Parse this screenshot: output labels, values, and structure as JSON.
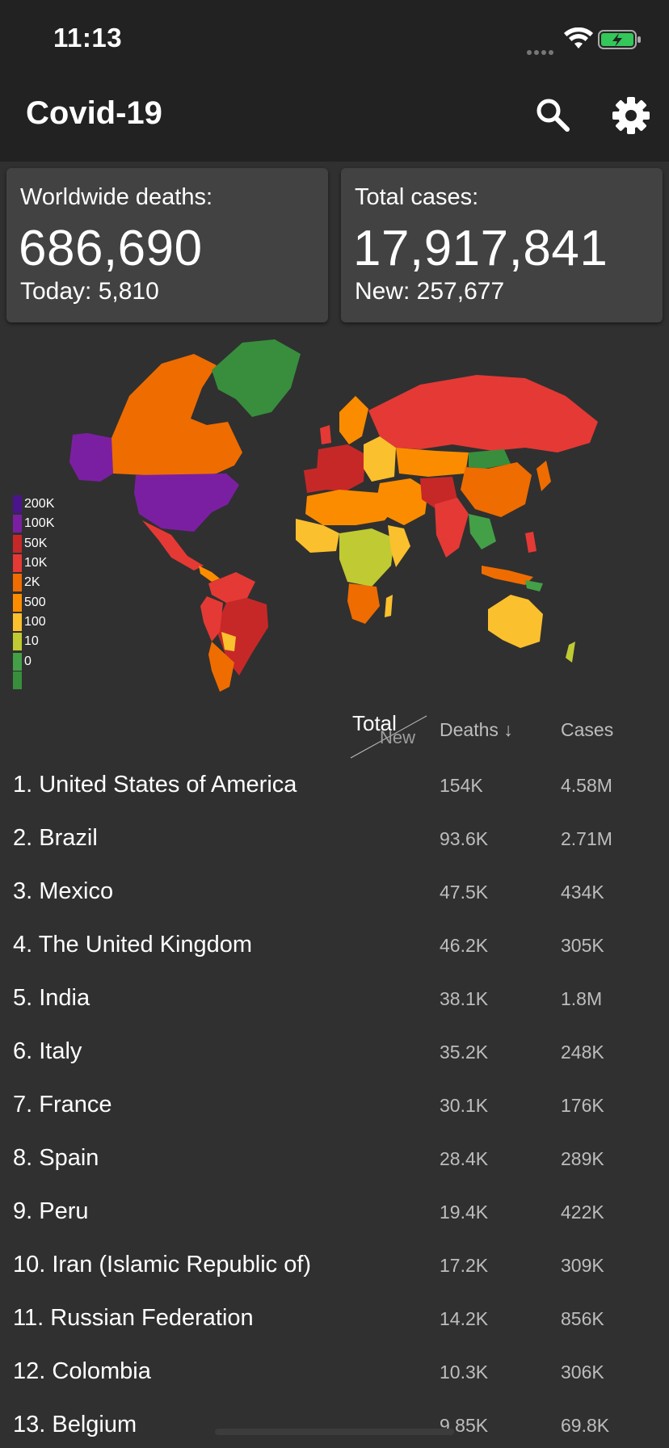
{
  "status_bar": {
    "time": "11:13"
  },
  "app_bar": {
    "title": "Covid-19"
  },
  "cards": {
    "deaths": {
      "label": "Worldwide deaths:",
      "value": "686,690",
      "sub": "Today: 5,810"
    },
    "cases": {
      "label": "Total cases:",
      "value": "17,917,841",
      "sub": "New: 257,677"
    }
  },
  "legend": [
    {
      "label": "200K",
      "color": "#4a148c"
    },
    {
      "label": "100K",
      "color": "#7b1fa2"
    },
    {
      "label": "50K",
      "color": "#c62828"
    },
    {
      "label": "10K",
      "color": "#e53935"
    },
    {
      "label": "2K",
      "color": "#ef6c00"
    },
    {
      "label": "500",
      "color": "#fb8c00"
    },
    {
      "label": "100",
      "color": "#fbc02d"
    },
    {
      "label": "10",
      "color": "#c0ca33"
    },
    {
      "label": "0",
      "color": "#43a047"
    }
  ],
  "table": {
    "header": {
      "total": "Total",
      "new": "New",
      "deaths": "Deaths ↓",
      "cases": "Cases"
    },
    "rows": [
      {
        "name": "1. United States of America",
        "deaths": "154K",
        "cases": "4.58M"
      },
      {
        "name": "2. Brazil",
        "deaths": "93.6K",
        "cases": "2.71M"
      },
      {
        "name": "3. Mexico",
        "deaths": "47.5K",
        "cases": "434K"
      },
      {
        "name": "4. The United Kingdom",
        "deaths": "46.2K",
        "cases": "305K"
      },
      {
        "name": "5. India",
        "deaths": "38.1K",
        "cases": "1.8M"
      },
      {
        "name": "6. Italy",
        "deaths": "35.2K",
        "cases": "248K"
      },
      {
        "name": "7. France",
        "deaths": "30.1K",
        "cases": "176K"
      },
      {
        "name": "8. Spain",
        "deaths": "28.4K",
        "cases": "289K"
      },
      {
        "name": "9. Peru",
        "deaths": "19.4K",
        "cases": "422K"
      },
      {
        "name": "10. Iran (Islamic Republic of)",
        "deaths": "17.2K",
        "cases": "309K"
      },
      {
        "name": "11. Russian Federation",
        "deaths": "14.2K",
        "cases": "856K"
      },
      {
        "name": "12. Colombia",
        "deaths": "10.3K",
        "cases": "306K"
      },
      {
        "name": "13. Belgium",
        "deaths": "9.85K",
        "cases": "69.8K"
      }
    ]
  }
}
